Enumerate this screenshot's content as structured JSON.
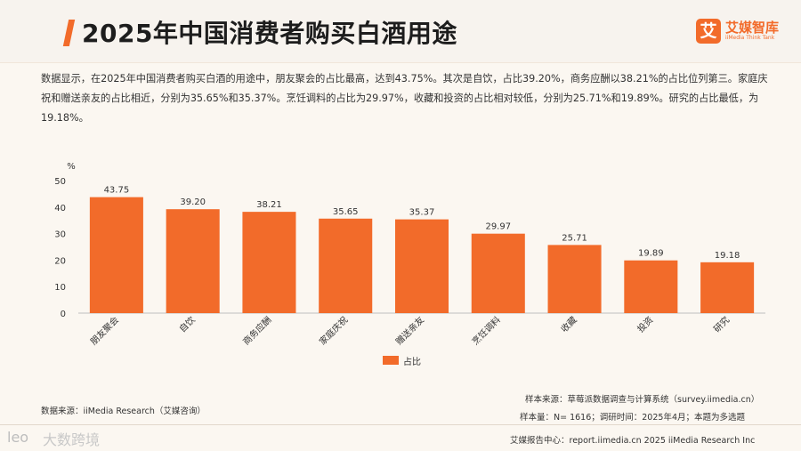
{
  "header": {
    "title": "2025年中国消费者购买白酒用途",
    "logo_mark": "艾",
    "logo_name": "艾媒智库",
    "logo_sub": "iiMedia Think Tank"
  },
  "summary": "数据显示，在2025年中国消费者购买白酒的用途中，朋友聚会的占比最高，达到43.75%。其次是自饮，占比39.20%，商务应酬以38.21%的占比位列第三。家庭庆祝和赠送亲友的占比相近，分别为35.65%和35.37%。烹饪调料的占比为29.97%，收藏和投资的占比相对较低，分别为25.71%和19.89%。研究的占比最低，为19.18%。",
  "chart_data": {
    "type": "bar",
    "categories": [
      "朋友聚会",
      "自饮",
      "商务应酬",
      "家庭庆祝",
      "赠送亲友",
      "烹饪调料",
      "收藏",
      "投资",
      "研究"
    ],
    "series": [
      {
        "name": "占比",
        "values": [
          43.75,
          39.2,
          38.21,
          35.65,
          35.37,
          29.97,
          25.71,
          19.89,
          19.18
        ]
      }
    ],
    "value_labels": [
      "43.75",
      "39.20",
      "38.21",
      "35.65",
      "35.37",
      "29.97",
      "25.71",
      "19.89",
      "19.18"
    ],
    "ylabel": "%",
    "ylim": [
      0,
      50
    ],
    "yticks": [
      0,
      10,
      20,
      30,
      40,
      50
    ],
    "grid": false,
    "legend": "bottom-center",
    "bar_color": "#f26b2a"
  },
  "sources": {
    "left": "数据来源：iiMedia Research（艾媒咨询）",
    "right1": "样本来源：草莓派数据调查与计算系统（survey.iimedia.cn）",
    "right2": "样本量：N= 1616；调研时间：2025年4月；本题为多选题"
  },
  "footer": {
    "left_icon": "leo",
    "left_text": "大数跨境",
    "right": "艾媒报告中心：report.iimedia.cn  2025 iiMedia Research Inc"
  },
  "colors": {
    "accent": "#f26b2a",
    "background": "#fbf7f1"
  }
}
